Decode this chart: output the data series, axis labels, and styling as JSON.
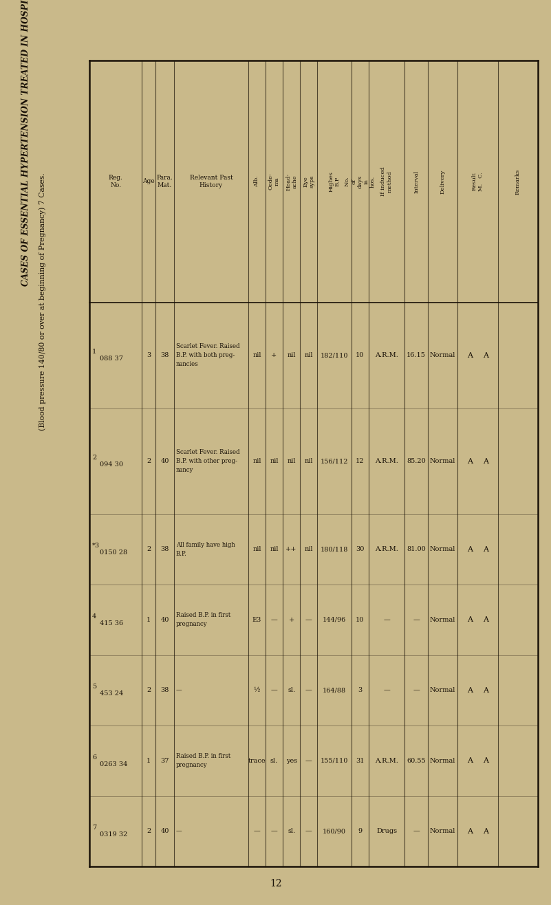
{
  "title_line1": "CASES OF ESSENTIAL HYPERTENSION TREATED IN HOSPITAL BEFORE LABOUR.",
  "title_line2": "(Blood pressure 140/80 or over at beginning of Pregnancy) 7 Cases.",
  "bg_color": "#c9b98a",
  "text_color": "#1a1208",
  "page_number": "12",
  "col_headers": [
    {
      "text": "Reg.\nNo.",
      "rot": 0
    },
    {
      "text": "Age",
      "rot": 0
    },
    {
      "text": "Para. Mat.",
      "rot": 0
    },
    {
      "text": "Relevant Past\nHistory",
      "rot": 0
    },
    {
      "text": "Alb.",
      "rot": 90
    },
    {
      "text": "Oede-\nma",
      "rot": 90
    },
    {
      "text": "Head-\nache",
      "rot": 90
    },
    {
      "text": "Eye\nsyps",
      "rot": 90
    },
    {
      "text": "Highes\nB.P",
      "rot": 90
    },
    {
      "text": "No.\nof\ndays\nin\nhos.",
      "rot": 90
    },
    {
      "text": "If induced\nmethod",
      "rot": 90
    },
    {
      "text": "Interval",
      "rot": 90
    },
    {
      "text": "Delivery",
      "rot": 90
    },
    {
      "text": "Result\nM.   C.",
      "rot": 90
    },
    {
      "text": "Remarks",
      "rot": 90
    }
  ],
  "rows": [
    {
      "reg": "1   088 37",
      "age": "3",
      "para_mat": "38",
      "history": "Scarlet Fever. Raised\nB.P. with both preg-\nnancies",
      "alb": "nil",
      "oedema": "+",
      "headache": "nil",
      "eye_syps": "nil",
      "highest_bp": "182/110",
      "days": "10",
      "if_induced": "A.R.M.",
      "interval": "16.15",
      "delivery": "Normal",
      "result_m": "A",
      "result_c": "A",
      "remarks": ""
    },
    {
      "reg": "2   094 30",
      "age": "2",
      "para_mat": "40",
      "history": "Scarlet Fever. Raised\nB.P. with other preg-\nnancy",
      "alb": "nil",
      "oedema": "nil",
      "headache": "nil",
      "eye_syps": "nil",
      "highest_bp": "156/112",
      "days": "12",
      "if_induced": "A.R.M.",
      "interval": "85.20",
      "delivery": "Normal",
      "result_m": "A",
      "result_c": "A",
      "remarks": ""
    },
    {
      "reg": "*3  0150 28",
      "age": "2",
      "para_mat": "38",
      "history": "All family have high\nB.P.",
      "alb": "nil",
      "oedema": "nil",
      "headache": "++",
      "eye_syps": "nil",
      "highest_bp": "180/118",
      "days": "30",
      "if_induced": "A.R.M.",
      "interval": "81.00",
      "delivery": "Normal",
      "result_m": "A",
      "result_c": "A",
      "remarks": ""
    },
    {
      "reg": "4   415 36",
      "age": "1",
      "para_mat": "40",
      "history": "Raised B.P. in first\npregnancy",
      "alb": "E3",
      "oedema": "—",
      "headache": "+",
      "eye_syps": "—",
      "highest_bp": "144/96",
      "days": "10",
      "if_induced": "—",
      "interval": "—",
      "delivery": "Normal",
      "result_m": "A",
      "result_c": "A",
      "remarks": ""
    },
    {
      "reg": "5   453 24",
      "age": "2",
      "para_mat": "38",
      "history": "—",
      "alb": "½",
      "oedema": "—",
      "headache": "sl.",
      "eye_syps": "—",
      "highest_bp": "164/88",
      "days": "3",
      "if_induced": "—",
      "interval": "—",
      "delivery": "Normal",
      "result_m": "A",
      "result_c": "A",
      "remarks": ""
    },
    {
      "reg": "6   0263 34",
      "age": "1",
      "para_mat": "37",
      "history": "Raised B.P. in first\npregnancy",
      "alb": "trace",
      "oedema": "sl.",
      "headache": "yes",
      "eye_syps": "—",
      "highest_bp": "155/110",
      "days": "31",
      "if_induced": "A.R.M.",
      "interval": "60.55",
      "delivery": "Normal",
      "result_m": "A",
      "result_c": "A",
      "remarks": ""
    },
    {
      "reg": "7   0319 32",
      "age": "2",
      "para_mat": "40",
      "history": "—",
      "alb": "—",
      "oedema": "—",
      "headache": "sl.",
      "eye_syps": "—",
      "highest_bp": "160/90",
      "days": "9",
      "if_induced": "Drugs",
      "interval": "—",
      "delivery": "Normal",
      "result_m": "A",
      "result_c": "A",
      "remarks": ""
    }
  ]
}
